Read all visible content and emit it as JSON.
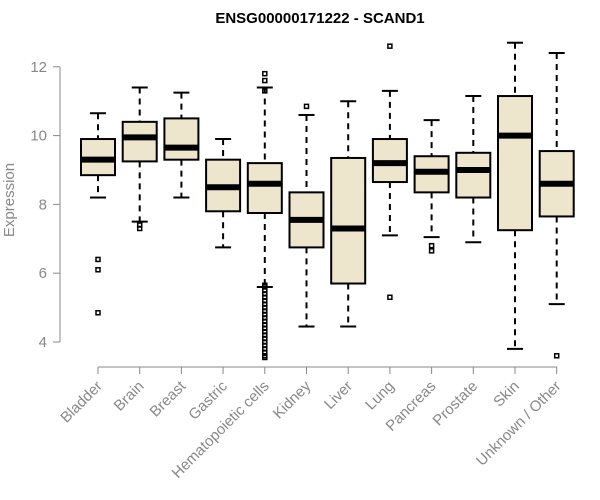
{
  "chart_data": {
    "type": "boxplot",
    "title": "ENSG00000171222 - SCAND1",
    "xlabel": "",
    "ylabel": "Expression",
    "ylim": [
      3.3,
      13.0
    ],
    "yticks": [
      4,
      6,
      8,
      10,
      12
    ],
    "box_fill": "#ede6cd",
    "categories": [
      "Bladder",
      "Brain",
      "Breast",
      "Gastric",
      "Hematopoietic cells",
      "Kidney",
      "Liver",
      "Lung",
      "Pancreas",
      "Prostate",
      "Skin",
      "Unknown / Other"
    ],
    "boxes": [
      {
        "name": "Bladder",
        "whisker_low": 8.2,
        "q1": 8.85,
        "median": 9.3,
        "q3": 9.9,
        "whisker_high": 10.65,
        "outliers": [
          6.4,
          6.1,
          4.85
        ]
      },
      {
        "name": "Brain",
        "whisker_low": 7.5,
        "q1": 9.25,
        "median": 9.95,
        "q3": 10.4,
        "whisker_high": 11.4,
        "outliers": [
          7.4,
          7.3
        ]
      },
      {
        "name": "Breast",
        "whisker_low": 8.2,
        "q1": 9.3,
        "median": 9.65,
        "q3": 10.5,
        "whisker_high": 11.25,
        "outliers": []
      },
      {
        "name": "Gastric",
        "whisker_low": 6.75,
        "q1": 7.8,
        "median": 8.5,
        "q3": 9.3,
        "whisker_high": 9.9,
        "outliers": []
      },
      {
        "name": "Hematopoietic cells",
        "whisker_low": 5.6,
        "q1": 7.75,
        "median": 8.6,
        "q3": 9.2,
        "whisker_high": 11.4,
        "outliers": [
          11.8,
          11.6,
          11.3,
          5.65,
          5.6,
          5.5,
          5.4,
          5.3,
          5.2,
          5.1,
          5.0,
          4.9,
          4.8,
          4.7,
          4.6,
          4.5,
          4.4,
          4.3,
          4.2,
          4.1,
          4.0,
          3.9,
          3.8,
          3.7,
          3.6,
          3.55
        ]
      },
      {
        "name": "Kidney",
        "whisker_low": 4.45,
        "q1": 6.75,
        "median": 7.55,
        "q3": 8.35,
        "whisker_high": 10.6,
        "outliers": [
          10.85
        ]
      },
      {
        "name": "Liver",
        "whisker_low": 4.45,
        "q1": 5.7,
        "median": 7.3,
        "q3": 9.35,
        "whisker_high": 11.0,
        "outliers": []
      },
      {
        "name": "Lung",
        "whisker_low": 7.1,
        "q1": 8.65,
        "median": 9.2,
        "q3": 9.9,
        "whisker_high": 11.3,
        "outliers": [
          12.6,
          5.3
        ]
      },
      {
        "name": "Pancreas",
        "whisker_low": 7.05,
        "q1": 8.35,
        "median": 8.95,
        "q3": 9.4,
        "whisker_high": 10.45,
        "outliers": [
          6.8,
          6.65
        ]
      },
      {
        "name": "Prostate",
        "whisker_low": 6.9,
        "q1": 8.2,
        "median": 9.0,
        "q3": 9.5,
        "whisker_high": 11.15,
        "outliers": []
      },
      {
        "name": "Skin",
        "whisker_low": 3.8,
        "q1": 7.25,
        "median": 10.0,
        "q3": 11.15,
        "whisker_high": 12.7,
        "outliers": []
      },
      {
        "name": "Unknown / Other",
        "whisker_low": 5.1,
        "q1": 7.65,
        "median": 8.6,
        "q3": 9.55,
        "whisker_high": 12.4,
        "outliers": [
          3.6
        ]
      }
    ]
  }
}
